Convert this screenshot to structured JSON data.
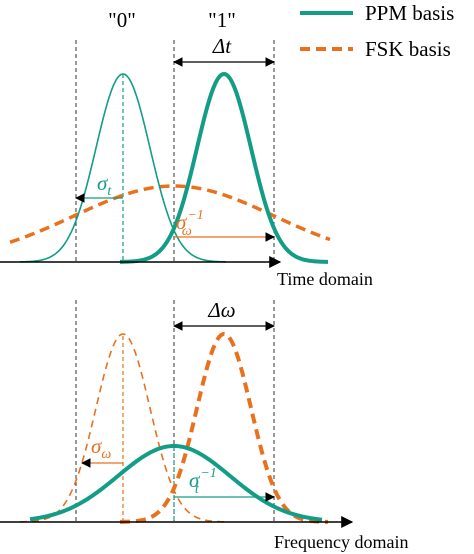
{
  "colors": {
    "ppm": "#139d86",
    "fsk": "#e9711d",
    "axis": "#000000",
    "guide": "#333333"
  },
  "legend": {
    "ppm": "PPM basis",
    "fsk": "FSK basis"
  },
  "symbols": {
    "zero": "\"0\"",
    "one": "\"1\""
  },
  "time_panel": {
    "delta": "Δt",
    "sigma_base": "σ",
    "sigma_sub": "t",
    "sigma_inv_base": "σ",
    "sigma_inv_sub": "ω",
    "sigma_inv_sup": "−1",
    "axis_label": "Time domain"
  },
  "freq_panel": {
    "delta": "Δω",
    "sigma_base": "σ",
    "sigma_sub": "ω",
    "sigma_inv_base": "σ",
    "sigma_inv_sub": "t",
    "sigma_inv_sup": "−1",
    "axis_label": "Frequency domain"
  }
}
